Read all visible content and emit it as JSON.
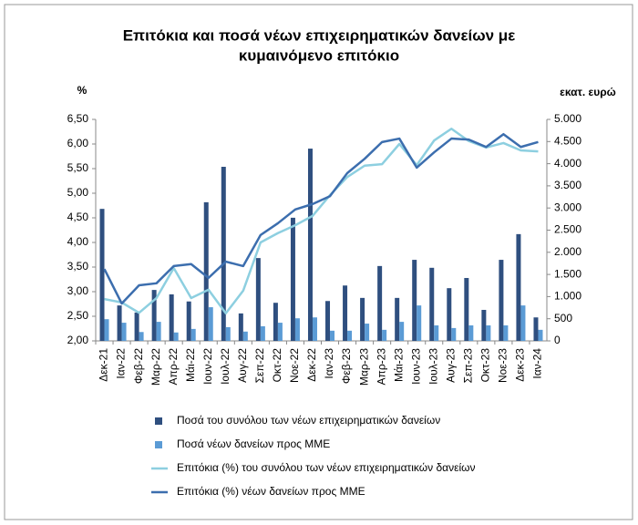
{
  "chart_data": {
    "type": "combo",
    "title": [
      "Επιτόκια και ποσά νέων επιχειρηματικών δανείων με",
      "κυμαινόμενο επιτόκιο"
    ],
    "y_label": "%",
    "y2_label": "εκατ. ευρώ",
    "categories": [
      "Δεκ-21",
      "Ιαν-22",
      "Φεβ-22",
      "Μαρ-22",
      "Απρ-22",
      "Μάι-22",
      "Ιουν-22",
      "Ιουλ-22",
      "Αυγ-22",
      "Σεπ-22",
      "Οκτ-22",
      "Νοε-22",
      "Δεκ-22",
      "Ιαν-23",
      "Φεβ-23",
      "Μαρ-23",
      "Απρ-23",
      "Μάι-23",
      "Ιουν-23",
      "Ιουλ-23",
      "Αυγ-23",
      "Σεπ-23",
      "Οκτ-23",
      "Νοε-23",
      "Δεκ-23",
      "Ιαν-24"
    ],
    "series": [
      {
        "name": "Ποσά του συνόλου των νέων επιχειρηματικών δανείων",
        "type": "bar",
        "axis": "y2",
        "color": "#2f4f7f",
        "values": [
          2980,
          800,
          640,
          1150,
          1050,
          890,
          3130,
          3930,
          620,
          1870,
          860,
          2780,
          4340,
          900,
          1250,
          970,
          1690,
          970,
          1830,
          1650,
          1190,
          1420,
          700,
          1830,
          2410,
          530
        ]
      },
      {
        "name": "Ποσά νέων δανείων προς ΜΜΕ",
        "type": "bar",
        "axis": "y2",
        "color": "#5b9bd5",
        "values": [
          490,
          410,
          200,
          430,
          190,
          270,
          760,
          310,
          210,
          330,
          410,
          510,
          530,
          230,
          230,
          390,
          250,
          430,
          800,
          350,
          290,
          350,
          350,
          350,
          800,
          250
        ]
      },
      {
        "name": "Επιτόκια (%) του συνόλου των νέων επιχειρηματικών δανείων",
        "type": "line",
        "axis": "y",
        "color": "#8dcfe0",
        "values": [
          2.85,
          2.78,
          2.57,
          2.87,
          3.48,
          2.87,
          3.04,
          2.56,
          3.02,
          4.0,
          4.19,
          4.35,
          4.54,
          4.96,
          5.33,
          5.56,
          5.59,
          6.0,
          5.57,
          6.07,
          6.31,
          6.06,
          5.93,
          6.02,
          5.87,
          5.85
        ]
      },
      {
        "name": "Επιτόκια (%) νέων δανείων προς ΜΜΕ",
        "type": "line",
        "axis": "y",
        "color": "#3c6eae",
        "values": [
          3.46,
          2.76,
          3.13,
          3.17,
          3.52,
          3.56,
          3.28,
          3.61,
          3.52,
          4.15,
          4.39,
          4.67,
          4.78,
          4.94,
          5.41,
          5.7,
          6.04,
          6.11,
          5.52,
          5.83,
          6.11,
          6.09,
          5.94,
          6.2,
          5.94,
          6.04
        ]
      }
    ],
    "ylim": [
      2,
      6.5
    ],
    "yticks": [
      {
        "value": 2,
        "label": "2,00"
      },
      {
        "value": 2.5,
        "label": "2,50"
      },
      {
        "value": 3,
        "label": "3,00"
      },
      {
        "value": 3.5,
        "label": "3,50"
      },
      {
        "value": 4,
        "label": "4,00"
      },
      {
        "value": 4.5,
        "label": "4,50"
      },
      {
        "value": 5,
        "label": "5,00"
      },
      {
        "value": 5.5,
        "label": "5,50"
      },
      {
        "value": 6,
        "label": "6,00"
      },
      {
        "value": 6.5,
        "label": "6,50"
      }
    ],
    "y2lim": [
      0,
      5000
    ],
    "y2ticks": [
      0,
      500,
      {
        "value": 1000,
        "label": "1.000"
      },
      {
        "value": 1500,
        "label": "1.500"
      },
      {
        "value": 2000,
        "label": "2.000"
      },
      {
        "value": 2500,
        "label": "2.500"
      },
      {
        "value": 3000,
        "label": "3.000"
      },
      {
        "value": 3500,
        "label": "3.500"
      },
      {
        "value": 4000,
        "label": "4.000"
      },
      {
        "value": 4500,
        "label": "4.500"
      },
      {
        "value": 5000,
        "label": "5.000"
      }
    ],
    "grid": false,
    "legend": "bottom"
  }
}
